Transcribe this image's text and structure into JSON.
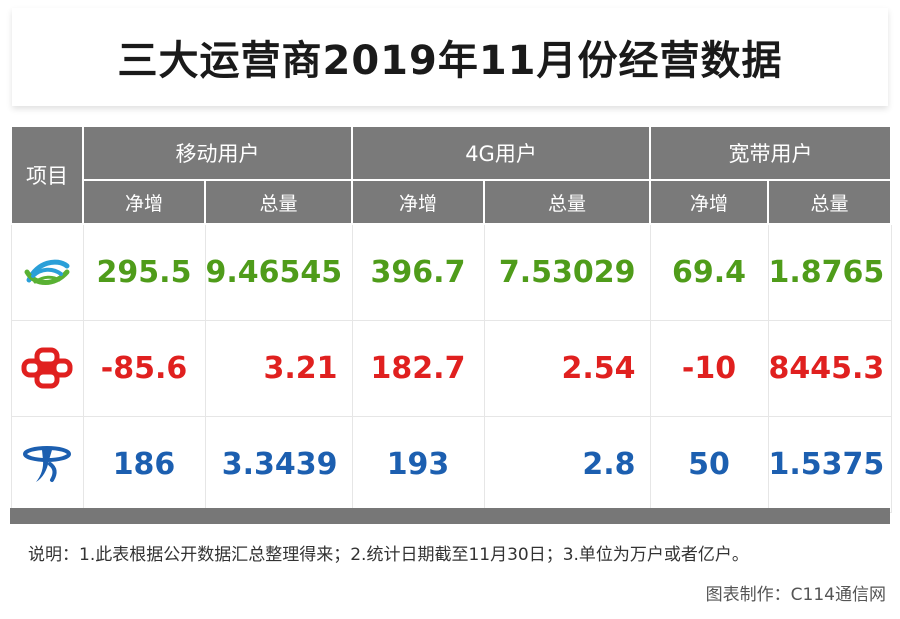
{
  "title": "三大运营商2019年11月份经营数据",
  "header": {
    "item": "项目",
    "groups": [
      "移动用户",
      "4G用户",
      "宽带用户"
    ],
    "subs": [
      "净增",
      "总量",
      "净增",
      "总量",
      "净增",
      "总量"
    ]
  },
  "rows": [
    {
      "operator_icon": "china-mobile-logo-icon",
      "color": "#4f9c1a",
      "values": [
        "295.5",
        "9.46545",
        "396.7",
        "7.53029",
        "69.4",
        "1.8765"
      ]
    },
    {
      "operator_icon": "china-unicom-logo-icon",
      "color": "#e0201f",
      "values": [
        "-85.6",
        "3.21",
        "182.7",
        "2.54",
        "-10",
        "8445.3"
      ]
    },
    {
      "operator_icon": "china-telecom-logo-icon",
      "color": "#1c5fb0",
      "values": [
        "186",
        "3.3439",
        "193",
        "2.8",
        "50",
        "1.5375"
      ]
    }
  ],
  "note": "说明：1.此表根据公开数据汇总整理得来；2.统计日期截至11月30日；3.单位为万户或者亿户。",
  "credit": "图表制作：C114通信网",
  "colors": {
    "header_bg": "#7a7a7a",
    "mobile": "#4f9c1a",
    "unicom": "#e0201f",
    "telecom": "#1c5fb0"
  }
}
